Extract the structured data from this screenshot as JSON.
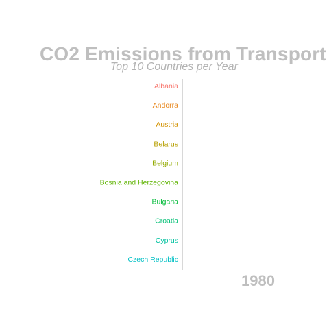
{
  "chart_data": {
    "type": "bar",
    "orientation": "horizontal",
    "title": "CO2 Emissions from Transport",
    "subtitle": "Top 10 Countries per Year",
    "frame_label": "1980",
    "categories": [
      "Albania",
      "Andorra",
      "Austria",
      "Belarus",
      "Belgium",
      "Bosnia and Herzegovina",
      "Bulgaria",
      "Croatia",
      "Cyprus",
      "Czech Republic"
    ],
    "category_colors": [
      "#f8766d",
      "#e7861b",
      "#d39200",
      "#b79f00",
      "#93aa00",
      "#5eb300",
      "#00ba38",
      "#00bf74",
      "#00c19f",
      "#00bfc4"
    ],
    "values": [
      0,
      0,
      0,
      0,
      0,
      0,
      0,
      0,
      0,
      0
    ],
    "axis_color": "#b0b0b0",
    "grid": false,
    "legend": "none"
  }
}
